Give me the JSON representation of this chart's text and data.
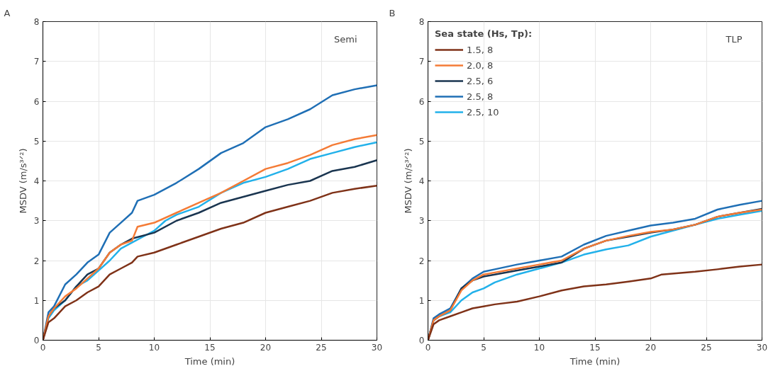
{
  "chart_data": [
    {
      "type": "line",
      "title": "A",
      "xlabel": "Time (min)",
      "ylabel": "MSDV (m/s³ᐟ²)",
      "annotations": [
        "Semi"
      ],
      "xlim": [
        0,
        30
      ],
      "ylim": [
        0,
        8
      ],
      "xticks": [
        0,
        5,
        10,
        15,
        20,
        25,
        30
      ],
      "yticks": [
        0,
        1,
        2,
        3,
        4,
        5,
        6,
        7,
        8
      ],
      "grid": true,
      "legend": false,
      "line_style": "solid",
      "series": [
        {
          "color": "#7f3218",
          "x": [
            0,
            0.5,
            1,
            2,
            3,
            4,
            5,
            6,
            7,
            8,
            8.5,
            10,
            12,
            14,
            16,
            18,
            20,
            22,
            24,
            26,
            28,
            30
          ],
          "values": [
            0,
            0.45,
            0.55,
            0.85,
            1.0,
            1.2,
            1.35,
            1.65,
            1.8,
            1.95,
            2.1,
            2.2,
            2.4,
            2.6,
            2.8,
            2.95,
            3.2,
            3.35,
            3.5,
            3.7,
            3.8,
            3.88
          ]
        },
        {
          "color": "#f47b36",
          "x": [
            0,
            0.5,
            1,
            2,
            3,
            4,
            5,
            6,
            7,
            8,
            8.5,
            10,
            12,
            14,
            16,
            18,
            20,
            22,
            24,
            26,
            28,
            30
          ],
          "values": [
            0,
            0.6,
            0.8,
            1.1,
            1.3,
            1.55,
            1.8,
            2.2,
            2.4,
            2.5,
            2.85,
            2.95,
            3.2,
            3.45,
            3.7,
            4.0,
            4.3,
            4.45,
            4.65,
            4.9,
            5.05,
            5.15
          ]
        },
        {
          "color": "#1a3550",
          "x": [
            0,
            0.5,
            1,
            2,
            3,
            4,
            5,
            6,
            7,
            8,
            10,
            12,
            14,
            16,
            18,
            20,
            22,
            24,
            26,
            28,
            30
          ],
          "values": [
            0,
            0.6,
            0.8,
            1.0,
            1.35,
            1.65,
            1.8,
            2.2,
            2.4,
            2.55,
            2.7,
            3.0,
            3.2,
            3.45,
            3.6,
            3.75,
            3.9,
            4.0,
            4.25,
            4.35,
            4.52
          ]
        },
        {
          "color": "#1f6fb5",
          "x": [
            0,
            0.5,
            1,
            2,
            3,
            4,
            5,
            6,
            7,
            8,
            8.5,
            10,
            12,
            14,
            16,
            18,
            20,
            22,
            24,
            26,
            28,
            30
          ],
          "values": [
            0,
            0.7,
            0.85,
            1.4,
            1.65,
            1.95,
            2.15,
            2.7,
            2.95,
            3.2,
            3.5,
            3.65,
            3.95,
            4.3,
            4.7,
            4.95,
            5.35,
            5.55,
            5.8,
            6.15,
            6.3,
            6.4
          ]
        },
        {
          "color": "#22b1ea",
          "x": [
            0,
            0.5,
            1,
            2,
            3,
            4,
            5,
            6,
            7,
            8,
            9,
            10,
            11,
            12,
            14,
            16,
            18,
            20,
            22,
            24,
            26,
            28,
            30
          ],
          "values": [
            0,
            0.55,
            0.75,
            1.0,
            1.35,
            1.5,
            1.75,
            2.0,
            2.3,
            2.45,
            2.6,
            2.75,
            3.0,
            3.15,
            3.35,
            3.7,
            3.95,
            4.1,
            4.3,
            4.55,
            4.7,
            4.85,
            4.97
          ]
        }
      ]
    },
    {
      "type": "line",
      "title": "B",
      "xlabel": "Time (min)",
      "ylabel": "MSDV (m/s³ᐟ²)",
      "annotations": [
        "TLP"
      ],
      "legend_title": "Sea state (Hs, Tp):",
      "xlim": [
        0,
        30
      ],
      "ylim": [
        0,
        8
      ],
      "xticks": [
        0,
        5,
        10,
        15,
        20,
        25,
        30
      ],
      "yticks": [
        0,
        1,
        2,
        3,
        4,
        5,
        6,
        7,
        8
      ],
      "grid": true,
      "legend": "top left",
      "line_style": "solid",
      "series": [
        {
          "name": "1.5, 8",
          "color": "#7f3218",
          "x": [
            0,
            0.5,
            1,
            2,
            3,
            4,
            5,
            6,
            8,
            10,
            12,
            14,
            16,
            18,
            20,
            21,
            24,
            26,
            28,
            30
          ],
          "values": [
            0,
            0.4,
            0.5,
            0.6,
            0.7,
            0.8,
            0.85,
            0.9,
            0.97,
            1.1,
            1.25,
            1.35,
            1.4,
            1.47,
            1.55,
            1.65,
            1.72,
            1.78,
            1.85,
            1.9
          ]
        },
        {
          "name": "2.0, 8",
          "color": "#f47b36",
          "x": [
            0,
            0.5,
            1,
            2,
            3,
            4,
            5,
            6,
            8,
            10,
            12,
            14,
            16,
            18,
            20,
            22,
            24,
            26,
            28,
            30
          ],
          "values": [
            0,
            0.5,
            0.6,
            0.75,
            1.25,
            1.5,
            1.65,
            1.7,
            1.8,
            1.9,
            2.0,
            2.3,
            2.5,
            2.62,
            2.72,
            2.78,
            2.9,
            3.1,
            3.2,
            3.28
          ]
        },
        {
          "name": "2.5, 6",
          "color": "#1a3550",
          "x": [
            0,
            0.5,
            1,
            2,
            3,
            4,
            5,
            6,
            8,
            10,
            12,
            14,
            16,
            18,
            20,
            22,
            24,
            26,
            28,
            30
          ],
          "values": [
            0,
            0.5,
            0.6,
            0.75,
            1.3,
            1.5,
            1.6,
            1.65,
            1.75,
            1.85,
            1.95,
            2.3,
            2.5,
            2.6,
            2.7,
            2.78,
            2.9,
            3.1,
            3.2,
            3.3
          ]
        },
        {
          "name": "2.5, 8",
          "color": "#1f6fb5",
          "x": [
            0,
            0.5,
            1,
            2,
            3,
            4,
            5,
            6,
            8,
            10,
            12,
            14,
            16,
            18,
            20,
            22,
            24,
            26,
            28,
            30
          ],
          "values": [
            0,
            0.55,
            0.65,
            0.8,
            1.3,
            1.55,
            1.72,
            1.78,
            1.9,
            2.0,
            2.1,
            2.4,
            2.62,
            2.75,
            2.88,
            2.95,
            3.05,
            3.28,
            3.4,
            3.5
          ]
        },
        {
          "name": "2.5, 10",
          "color": "#22b1ea",
          "x": [
            0,
            0.5,
            1,
            2,
            3,
            4,
            5,
            6,
            8,
            10,
            12,
            14,
            16,
            18,
            20,
            22,
            24,
            26,
            28,
            30
          ],
          "values": [
            0,
            0.5,
            0.6,
            0.7,
            1.0,
            1.2,
            1.3,
            1.45,
            1.65,
            1.8,
            1.95,
            2.15,
            2.28,
            2.38,
            2.6,
            2.75,
            2.9,
            3.05,
            3.15,
            3.25
          ]
        }
      ]
    }
  ]
}
